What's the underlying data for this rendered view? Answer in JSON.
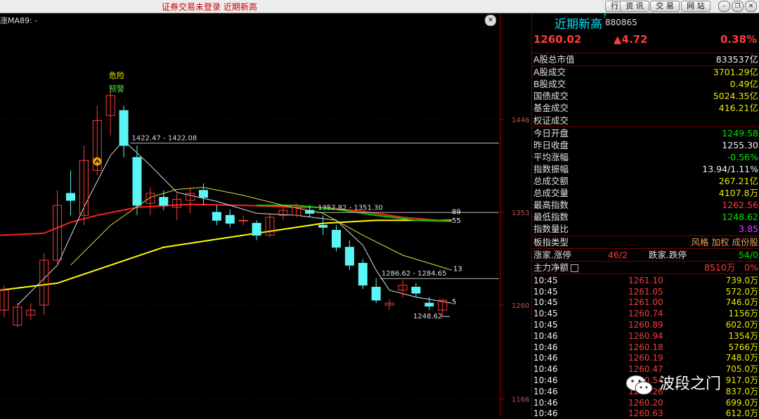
{
  "titlebar": {
    "title": "证券交易未登录  近期新高",
    "buttons": [
      "行 情",
      "资 讯",
      "交 易",
      "网 站"
    ]
  },
  "chart": {
    "ma_label": "涨MA89: -",
    "warn1": "危险",
    "warn2": "预警",
    "price_labels": [
      "1446",
      "1353",
      "1260",
      "1166"
    ],
    "annotations": {
      "a1": "1422.47 - 1422.08",
      "a2": "1352.82 - 1351.30",
      "a3": "1286.62 - 1284.65",
      "a4": "1248.62"
    },
    "ma_end_labels": [
      "89",
      "55",
      "13",
      "5"
    ],
    "colors": {
      "up": "#ff3b3b",
      "down": "#5cf5f5",
      "ma5": "#e0e0e0",
      "ma13": "#e0e040",
      "ma34": "#ff2020",
      "ma55": "#ffff00",
      "ma89": "#00d000"
    }
  },
  "chart_data": {
    "type": "candlestick",
    "ylim": [
      1166,
      1446
    ],
    "candles": [
      {
        "o": 1255,
        "c": 1275,
        "h": 1280,
        "l": 1248
      },
      {
        "o": 1240,
        "c": 1258,
        "h": 1262,
        "l": 1238
      },
      {
        "o": 1250,
        "c": 1255,
        "h": 1262,
        "l": 1245
      },
      {
        "o": 1260,
        "c": 1305,
        "h": 1312,
        "l": 1250
      },
      {
        "o": 1305,
        "c": 1360,
        "h": 1375,
        "l": 1300
      },
      {
        "o": 1372,
        "c": 1365,
        "h": 1395,
        "l": 1350
      },
      {
        "o": 1350,
        "c": 1405,
        "h": 1420,
        "l": 1340
      },
      {
        "o": 1395,
        "c": 1445,
        "h": 1460,
        "l": 1390
      },
      {
        "o": 1450,
        "c": 1470,
        "h": 1480,
        "l": 1430
      },
      {
        "o": 1455,
        "c": 1420,
        "h": 1460,
        "l": 1408
      },
      {
        "o": 1408,
        "c": 1360,
        "h": 1420,
        "l": 1350
      },
      {
        "o": 1362,
        "c": 1372,
        "h": 1378,
        "l": 1350
      },
      {
        "o": 1368,
        "c": 1360,
        "h": 1375,
        "l": 1355
      },
      {
        "o": 1358,
        "c": 1366,
        "h": 1372,
        "l": 1345
      },
      {
        "o": 1365,
        "c": 1372,
        "h": 1378,
        "l": 1352
      },
      {
        "o": 1375,
        "c": 1368,
        "h": 1382,
        "l": 1360
      },
      {
        "o": 1353,
        "c": 1345,
        "h": 1360,
        "l": 1340
      },
      {
        "o": 1350,
        "c": 1342,
        "h": 1356,
        "l": 1338
      },
      {
        "o": 1345,
        "c": 1345,
        "h": 1350,
        "l": 1340
      },
      {
        "o": 1342,
        "c": 1330,
        "h": 1345,
        "l": 1325
      },
      {
        "o": 1330,
        "c": 1348,
        "h": 1352,
        "l": 1328
      },
      {
        "o": 1350,
        "c": 1355,
        "h": 1360,
        "l": 1345
      },
      {
        "o": 1350,
        "c": 1358,
        "h": 1362,
        "l": 1348
      },
      {
        "o": 1355,
        "c": 1352,
        "h": 1360,
        "l": 1348
      },
      {
        "o": 1340,
        "c": 1338,
        "h": 1350,
        "l": 1330
      },
      {
        "o": 1335,
        "c": 1318,
        "h": 1340,
        "l": 1314
      },
      {
        "o": 1318,
        "c": 1300,
        "h": 1325,
        "l": 1295
      },
      {
        "o": 1302,
        "c": 1280,
        "h": 1306,
        "l": 1276
      },
      {
        "o": 1278,
        "c": 1265,
        "h": 1287,
        "l": 1262
      },
      {
        "o": 1260,
        "c": 1262,
        "h": 1266,
        "l": 1255
      },
      {
        "o": 1275,
        "c": 1280,
        "h": 1285,
        "l": 1268
      },
      {
        "o": 1278,
        "c": 1272,
        "h": 1282,
        "l": 1268
      },
      {
        "o": 1262,
        "c": 1259,
        "h": 1268,
        "l": 1255
      },
      {
        "o": 1255,
        "c": 1265,
        "h": 1266,
        "l": 1249
      }
    ]
  },
  "panel": {
    "name": "近期新高",
    "sup": "↑",
    "code": "880865",
    "price": "1260.02",
    "change": "▲4.72",
    "pct": "0.38%",
    "group1": [
      {
        "k": "A股总市值",
        "v": "833537亿",
        "c": "white"
      }
    ],
    "group2": [
      {
        "k": "A股成交",
        "v": "3701.29亿",
        "c": "yellow"
      },
      {
        "k": "B股成交",
        "v": "0.49亿",
        "c": "yellow"
      },
      {
        "k": "国债成交",
        "v": "5024.35亿",
        "c": "yellow"
      },
      {
        "k": "基金成交",
        "v": "416.21亿",
        "c": "yellow"
      },
      {
        "k": "权证成交",
        "v": "",
        "c": "yellow"
      }
    ],
    "group3": [
      {
        "k": "今日开盘",
        "v": "1249.58",
        "c": "green"
      },
      {
        "k": "昨日收盘",
        "v": "1255.30",
        "c": "white"
      },
      {
        "k": "平均涨幅",
        "v": "-0.56%",
        "c": "green"
      },
      {
        "k": "指数振幅",
        "v": "13.94/1.11%",
        "c": "white"
      },
      {
        "k": "总成交额",
        "v": "267.21亿",
        "c": "yellow"
      },
      {
        "k": "总成交量",
        "v": "4107.8万",
        "c": "yellow"
      },
      {
        "k": "最高指数",
        "v": "1262.56",
        "c": "red"
      },
      {
        "k": "最低指数",
        "v": "1248.62",
        "c": "green"
      },
      {
        "k": "指数量比",
        "v": "3.85",
        "c": "purple"
      }
    ],
    "type_row": {
      "k": "板指类型",
      "v": "风格 加权 成份股"
    },
    "limit_row": {
      "k": "涨家.涨停",
      "v1": "46/2",
      "k2": "跌家.跌停",
      "v2": "54/0"
    },
    "flow_row": {
      "k": "主力净额",
      "v1": "8510万",
      "v2": "0%"
    },
    "ticks": [
      {
        "t": "10:45",
        "p": "1261.10",
        "a": "739.0万"
      },
      {
        "t": "10:45",
        "p": "1261.05",
        "a": "572.0万"
      },
      {
        "t": "10:45",
        "p": "1261.00",
        "a": "746.0万"
      },
      {
        "t": "10:45",
        "p": "1260.74",
        "a": "1156万"
      },
      {
        "t": "10:45",
        "p": "1260.89",
        "a": "602.0万"
      },
      {
        "t": "10:46",
        "p": "1260.94",
        "a": "1354万"
      },
      {
        "t": "10:46",
        "p": "1260.18",
        "a": "5766万"
      },
      {
        "t": "10:46",
        "p": "1260.19",
        "a": "748.0万"
      },
      {
        "t": "10:46",
        "p": "1260.47",
        "a": "705.0万"
      },
      {
        "t": "10:46",
        "p": "1260.54",
        "a": "917.0万"
      },
      {
        "t": "10:46",
        "p": "1260.26",
        "a": "837.0万"
      },
      {
        "t": "10:46",
        "p": "1260.20",
        "a": "699.0万"
      },
      {
        "t": "10:46",
        "p": "1260.63",
        "a": "612.0万"
      }
    ]
  },
  "watermark": {
    "text": "波段之门"
  }
}
